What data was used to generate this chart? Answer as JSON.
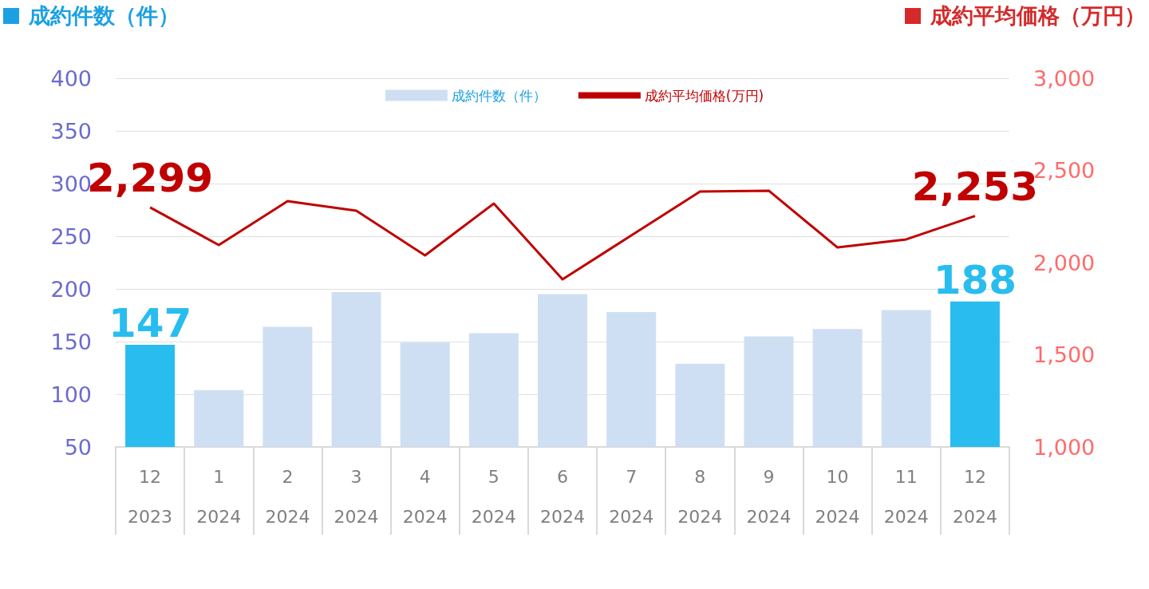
{
  "chart_data": {
    "type": "bar",
    "ylabel": "成約件数（件）",
    "y2label": "成約平均価格（万円）",
    "categories": [
      "12\n2023",
      "1\n2024",
      "2\n2024",
      "3\n2024",
      "4\n2024",
      "5\n2024",
      "6\n2024",
      "7\n2024",
      "8\n2024",
      "9\n2024",
      "10\n2024",
      "11\n2024",
      "12\n2024"
    ],
    "ylim": [
      50,
      400
    ],
    "yticks": [
      50,
      100,
      150,
      200,
      250,
      300,
      350,
      400
    ],
    "y2lim": [
      1000,
      3000
    ],
    "y2ticks": [
      {
        "value": 1000,
        "label": "1,000"
      },
      {
        "value": 1500,
        "label": "1,500"
      },
      {
        "value": 2000,
        "label": "2,000"
      },
      {
        "value": 2500,
        "label": "2,500"
      },
      {
        "value": 3000,
        "label": "3,000"
      }
    ],
    "grid": "y",
    "legend": "top",
    "marker": "none",
    "series": [
      {
        "name": "成約件数（件）",
        "color": "#cfdff3",
        "colors": [
          "#29bdef",
          "#cfdff3",
          "#cfdff3",
          "#cfdff3",
          "#cfdff3",
          "#cfdff3",
          "#cfdff3",
          "#cfdff3",
          "#cfdff3",
          "#cfdff3",
          "#cfdff3",
          "#cfdff3",
          "#29bdef"
        ],
        "values": [
          147,
          104,
          164,
          197,
          149,
          158,
          195,
          178,
          129,
          155,
          162,
          180,
          188
        ],
        "value_labels": [
          "147",
          null,
          null,
          null,
          null,
          null,
          null,
          null,
          null,
          null,
          null,
          null,
          "188"
        ]
      },
      {
        "type": "line",
        "name": "成約平均価格(万円)",
        "color": "#c00000",
        "axis": "y2",
        "values": [
          2299,
          2095,
          2333,
          2281,
          2039,
          2320,
          1909,
          2147,
          2385,
          2390,
          2082,
          2126,
          2253
        ],
        "value_labels": [
          "2,299",
          null,
          null,
          null,
          null,
          null,
          null,
          null,
          null,
          null,
          null,
          null,
          "2,253"
        ]
      }
    ]
  }
}
